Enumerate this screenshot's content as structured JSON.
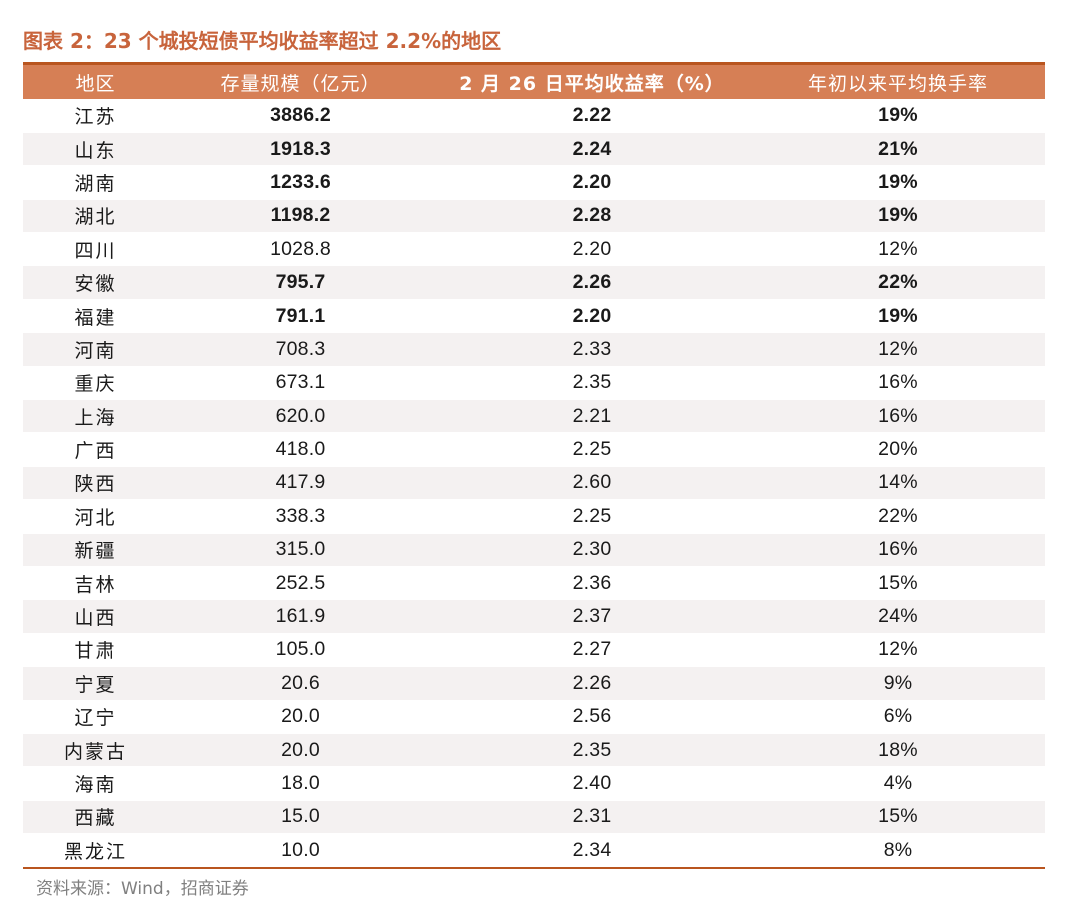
{
  "title": "图表 2：23 个城投短债平均收益率超过 2.2%的地区",
  "table": {
    "headers": {
      "region": "地区",
      "scale": "存量规模（亿元）",
      "yield": "2 月 26 日平均收益率（%）",
      "turnover": "年初以来平均换手率"
    },
    "rows": [
      {
        "region": "江苏",
        "scale": "3886.2",
        "yield": "2.22",
        "turnover": "19%",
        "bold": true
      },
      {
        "region": "山东",
        "scale": "1918.3",
        "yield": "2.24",
        "turnover": "21%",
        "bold": true
      },
      {
        "region": "湖南",
        "scale": "1233.6",
        "yield": "2.20",
        "turnover": "19%",
        "bold": true
      },
      {
        "region": "湖北",
        "scale": "1198.2",
        "yield": "2.28",
        "turnover": "19%",
        "bold": true
      },
      {
        "region": "四川",
        "scale": "1028.8",
        "yield": "2.20",
        "turnover": "12%",
        "bold": false
      },
      {
        "region": "安徽",
        "scale": "795.7",
        "yield": "2.26",
        "turnover": "22%",
        "bold": true
      },
      {
        "region": "福建",
        "scale": "791.1",
        "yield": "2.20",
        "turnover": "19%",
        "bold": true
      },
      {
        "region": "河南",
        "scale": "708.3",
        "yield": "2.33",
        "turnover": "12%",
        "bold": false
      },
      {
        "region": "重庆",
        "scale": "673.1",
        "yield": "2.35",
        "turnover": "16%",
        "bold": false
      },
      {
        "region": "上海",
        "scale": "620.0",
        "yield": "2.21",
        "turnover": "16%",
        "bold": false
      },
      {
        "region": "广西",
        "scale": "418.0",
        "yield": "2.25",
        "turnover": "20%",
        "bold": false
      },
      {
        "region": "陕西",
        "scale": "417.9",
        "yield": "2.60",
        "turnover": "14%",
        "bold": false
      },
      {
        "region": "河北",
        "scale": "338.3",
        "yield": "2.25",
        "turnover": "22%",
        "bold": false
      },
      {
        "region": "新疆",
        "scale": "315.0",
        "yield": "2.30",
        "turnover": "16%",
        "bold": false
      },
      {
        "region": "吉林",
        "scale": "252.5",
        "yield": "2.36",
        "turnover": "15%",
        "bold": false
      },
      {
        "region": "山西",
        "scale": "161.9",
        "yield": "2.37",
        "turnover": "24%",
        "bold": false
      },
      {
        "region": "甘肃",
        "scale": "105.0",
        "yield": "2.27",
        "turnover": "12%",
        "bold": false
      },
      {
        "region": "宁夏",
        "scale": "20.6",
        "yield": "2.26",
        "turnover": "9%",
        "bold": false
      },
      {
        "region": "辽宁",
        "scale": "20.0",
        "yield": "2.56",
        "turnover": "6%",
        "bold": false
      },
      {
        "region": "内蒙古",
        "scale": "20.0",
        "yield": "2.35",
        "turnover": "18%",
        "bold": false
      },
      {
        "region": "海南",
        "scale": "18.0",
        "yield": "2.40",
        "turnover": "4%",
        "bold": false
      },
      {
        "region": "西藏",
        "scale": "15.0",
        "yield": "2.31",
        "turnover": "15%",
        "bold": false
      },
      {
        "region": "黑龙江",
        "scale": "10.0",
        "yield": "2.34",
        "turnover": "8%",
        "bold": false
      }
    ]
  },
  "source": "资料来源：Wind，招商证券",
  "colors": {
    "title": "#c8643c",
    "header_bg": "#d67f55",
    "rule": "#b9551f",
    "stripe": "#f4f1f1",
    "source_text": "#808080"
  }
}
